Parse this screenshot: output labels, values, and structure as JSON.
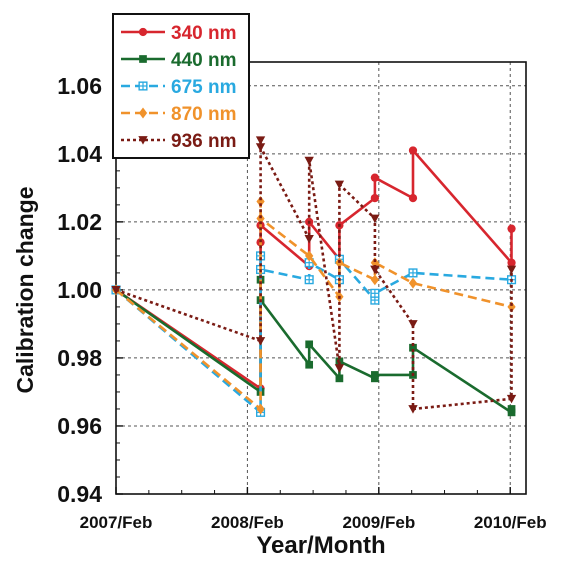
{
  "chart_data": {
    "type": "line",
    "title": "",
    "xlabel": "Year/Month",
    "ylabel": "Calibration change",
    "x_ticks": [
      "2007/Feb",
      "2008/Feb",
      "2009/Feb",
      "2010/Feb"
    ],
    "y_ticks": [
      "0.94",
      "0.96",
      "0.98",
      "1.00",
      "1.02",
      "1.04",
      "1.06"
    ],
    "xlim": [
      2007.0,
      2010.12
    ],
    "ylim": [
      0.94,
      1.067
    ],
    "grid": true,
    "legend_position": "top-left",
    "series": [
      {
        "name": "340 nm",
        "color": "#d7262e",
        "marker": "circle",
        "dash": "solid",
        "points": [
          [
            2007.0,
            1.0
          ],
          [
            2008.1,
            0.971
          ],
          [
            2008.1,
            1.014
          ],
          [
            2008.1,
            1.019
          ],
          [
            2008.47,
            1.007
          ],
          [
            2008.47,
            1.02
          ],
          [
            2008.7,
            1.009
          ],
          [
            2008.7,
            1.019
          ],
          [
            2008.97,
            1.027
          ],
          [
            2008.97,
            1.033
          ],
          [
            2009.26,
            1.027
          ],
          [
            2009.26,
            1.041
          ],
          [
            2010.01,
            1.008
          ],
          [
            2010.01,
            1.018
          ]
        ]
      },
      {
        "name": "440 nm",
        "color": "#1a6b2e",
        "marker": "square",
        "dash": "solid",
        "points": [
          [
            2007.0,
            1.0
          ],
          [
            2008.1,
            0.97
          ],
          [
            2008.1,
            1.003
          ],
          [
            2008.1,
            0.997
          ],
          [
            2008.47,
            0.978
          ],
          [
            2008.47,
            0.984
          ],
          [
            2008.7,
            0.974
          ],
          [
            2008.7,
            0.979
          ],
          [
            2008.97,
            0.974
          ],
          [
            2008.97,
            0.975
          ],
          [
            2009.26,
            0.975
          ],
          [
            2009.26,
            0.983
          ],
          [
            2010.01,
            0.964
          ],
          [
            2010.01,
            0.965
          ]
        ]
      },
      {
        "name": "675 nm",
        "color": "#29a9e0",
        "marker": "boxed-plus",
        "dash": "dashed",
        "points": [
          [
            2007.0,
            1.0
          ],
          [
            2008.1,
            0.964
          ],
          [
            2008.1,
            1.01
          ],
          [
            2008.1,
            1.006
          ],
          [
            2008.47,
            1.003
          ],
          [
            2008.47,
            1.008
          ],
          [
            2008.7,
            1.003
          ],
          [
            2008.7,
            1.009
          ],
          [
            2008.97,
            0.997
          ],
          [
            2008.97,
            0.999
          ],
          [
            2009.26,
            1.005
          ],
          [
            2010.01,
            1.003
          ]
        ]
      },
      {
        "name": "870 nm",
        "color": "#f0922b",
        "marker": "diamond",
        "dash": "dashed",
        "points": [
          [
            2007.0,
            1.0
          ],
          [
            2008.1,
            0.965
          ],
          [
            2008.1,
            1.026
          ],
          [
            2008.1,
            1.021
          ],
          [
            2008.47,
            1.01
          ],
          [
            2008.7,
            0.998
          ],
          [
            2008.7,
            1.008
          ],
          [
            2008.97,
            1.003
          ],
          [
            2008.97,
            1.008
          ],
          [
            2009.26,
            1.002
          ],
          [
            2010.01,
            0.995
          ]
        ]
      },
      {
        "name": "936 nm",
        "color": "#7a1b14",
        "marker": "triangle-down",
        "dash": "dotted",
        "points": [
          [
            2007.0,
            1.0
          ],
          [
            2008.1,
            0.985
          ],
          [
            2008.1,
            1.044
          ],
          [
            2008.1,
            1.042
          ],
          [
            2008.47,
            1.015
          ],
          [
            2008.47,
            1.038
          ],
          [
            2008.7,
            0.977
          ],
          [
            2008.7,
            1.031
          ],
          [
            2008.97,
            1.021
          ],
          [
            2008.97,
            1.006
          ],
          [
            2009.26,
            0.99
          ],
          [
            2009.26,
            0.965
          ],
          [
            2010.01,
            0.968
          ],
          [
            2010.01,
            1.006
          ]
        ]
      }
    ]
  }
}
